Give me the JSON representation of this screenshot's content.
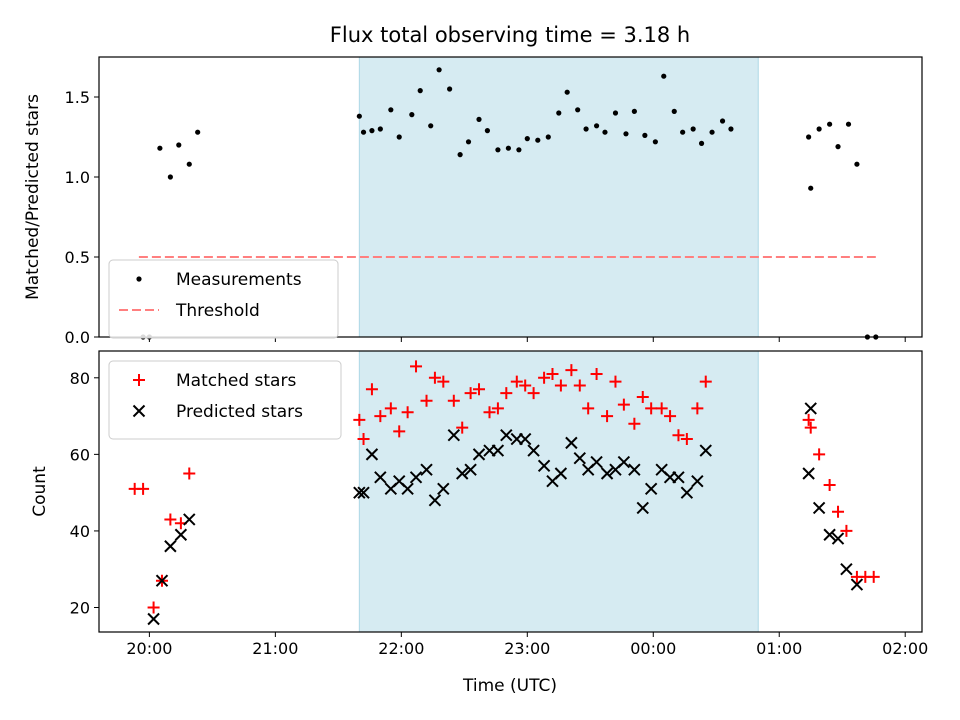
{
  "figure": {
    "title": "Flux total observing time = 3.18 h",
    "xlabel": "Time (UTC)"
  },
  "chart_data": [
    {
      "type": "scatter",
      "title": "Flux total observing time = 3.18 h",
      "ylabel": "Matched/Predicted stars",
      "xlabel": "",
      "xlim": [
        "19:36",
        "02:08"
      ],
      "ylim": [
        0,
        1.75
      ],
      "yticks": [
        "0.0",
        "0.5",
        "1.0",
        "1.5"
      ],
      "legend_position": "lower-left",
      "shaded_span": [
        "21:40",
        "00:50"
      ],
      "shaded_color": "#add8e6",
      "series": [
        {
          "name": "Measurements",
          "marker": "dot",
          "color": "#000000",
          "points": [
            [
              "19:57",
              0.0
            ],
            [
              "20:00",
              0.0
            ],
            [
              "20:05",
              1.18
            ],
            [
              "20:10",
              1.0
            ],
            [
              "20:14",
              1.2
            ],
            [
              "20:19",
              1.08
            ],
            [
              "20:23",
              1.28
            ],
            [
              "21:40",
              1.38
            ],
            [
              "21:42",
              1.28
            ],
            [
              "21:46",
              1.29
            ],
            [
              "21:50",
              1.3
            ],
            [
              "21:55",
              1.42
            ],
            [
              "21:59",
              1.25
            ],
            [
              "22:05",
              1.39
            ],
            [
              "22:09",
              1.54
            ],
            [
              "22:14",
              1.32
            ],
            [
              "22:18",
              1.67
            ],
            [
              "22:23",
              1.55
            ],
            [
              "22:28",
              1.14
            ],
            [
              "22:32",
              1.22
            ],
            [
              "22:37",
              1.36
            ],
            [
              "22:41",
              1.29
            ],
            [
              "22:46",
              1.17
            ],
            [
              "22:51",
              1.18
            ],
            [
              "22:56",
              1.17
            ],
            [
              "23:00",
              1.24
            ],
            [
              "23:05",
              1.23
            ],
            [
              "23:10",
              1.25
            ],
            [
              "23:15",
              1.4
            ],
            [
              "23:19",
              1.53
            ],
            [
              "23:24",
              1.42
            ],
            [
              "23:28",
              1.3
            ],
            [
              "23:33",
              1.32
            ],
            [
              "23:37",
              1.28
            ],
            [
              "23:42",
              1.4
            ],
            [
              "23:47",
              1.27
            ],
            [
              "23:51",
              1.41
            ],
            [
              "23:56",
              1.26
            ],
            [
              "00:01",
              1.22
            ],
            [
              "00:05",
              1.63
            ],
            [
              "00:10",
              1.41
            ],
            [
              "00:14",
              1.28
            ],
            [
              "00:19",
              1.3
            ],
            [
              "00:23",
              1.21
            ],
            [
              "00:28",
              1.28
            ],
            [
              "00:33",
              1.35
            ],
            [
              "00:37",
              1.3
            ],
            [
              "01:14",
              1.25
            ],
            [
              "01:15",
              0.93
            ],
            [
              "01:19",
              1.3
            ],
            [
              "01:24",
              1.33
            ],
            [
              "01:28",
              1.19
            ],
            [
              "01:33",
              1.33
            ],
            [
              "01:37",
              1.08
            ],
            [
              "01:42",
              0.0
            ],
            [
              "01:46",
              0.0
            ]
          ]
        },
        {
          "name": "Threshold",
          "style": "dashed",
          "color": "#ff7f7f",
          "x_range": [
            "19:55",
            "01:46"
          ],
          "y": 0.5
        }
      ]
    },
    {
      "type": "scatter",
      "xlabel": "Time (UTC)",
      "ylabel": "Count",
      "xlim": [
        "19:36",
        "02:08"
      ],
      "ylim": [
        13.6,
        87
      ],
      "yticks": [
        "20",
        "40",
        "60",
        "80"
      ],
      "xticks": [
        "20:00",
        "21:00",
        "22:00",
        "23:00",
        "00:00",
        "01:00",
        "02:00"
      ],
      "legend_position": "upper-left",
      "shaded_span": [
        "21:40",
        "00:50"
      ],
      "shaded_color": "#add8e6",
      "series": [
        {
          "name": "Matched stars",
          "marker": "plus",
          "color": "#ff0000",
          "points": [
            [
              "19:53",
              51
            ],
            [
              "19:57",
              51
            ],
            [
              "20:02",
              20
            ],
            [
              "20:06",
              27
            ],
            [
              "20:10",
              43
            ],
            [
              "20:15",
              42
            ],
            [
              "20:19",
              55
            ],
            [
              "21:40",
              69
            ],
            [
              "21:42",
              64
            ],
            [
              "21:46",
              77
            ],
            [
              "21:50",
              70
            ],
            [
              "21:55",
              72
            ],
            [
              "21:59",
              66
            ],
            [
              "22:03",
              71
            ],
            [
              "22:07",
              83
            ],
            [
              "22:12",
              74
            ],
            [
              "22:16",
              80
            ],
            [
              "22:20",
              79
            ],
            [
              "22:25",
              74
            ],
            [
              "22:29",
              67
            ],
            [
              "22:33",
              76
            ],
            [
              "22:37",
              77
            ],
            [
              "22:42",
              71
            ],
            [
              "22:46",
              72
            ],
            [
              "22:50",
              76
            ],
            [
              "22:55",
              79
            ],
            [
              "22:59",
              78
            ],
            [
              "23:03",
              76
            ],
            [
              "23:08",
              80
            ],
            [
              "23:12",
              81
            ],
            [
              "23:16",
              78
            ],
            [
              "23:21",
              82
            ],
            [
              "23:25",
              78
            ],
            [
              "23:29",
              72
            ],
            [
              "23:33",
              81
            ],
            [
              "23:38",
              70
            ],
            [
              "23:42",
              79
            ],
            [
              "23:46",
              73
            ],
            [
              "23:51",
              68
            ],
            [
              "23:55",
              75
            ],
            [
              "23:59",
              72
            ],
            [
              "00:04",
              72
            ],
            [
              "00:08",
              70
            ],
            [
              "00:12",
              65
            ],
            [
              "00:16",
              64
            ],
            [
              "00:21",
              72
            ],
            [
              "00:25",
              79
            ],
            [
              "01:14",
              69
            ],
            [
              "01:15",
              67
            ],
            [
              "01:19",
              60
            ],
            [
              "01:24",
              52
            ],
            [
              "01:28",
              45
            ],
            [
              "01:32",
              40
            ],
            [
              "01:37",
              28
            ],
            [
              "01:41",
              28
            ],
            [
              "01:45",
              28
            ]
          ]
        },
        {
          "name": "Predicted stars",
          "marker": "x",
          "color": "#000000",
          "points": [
            [
              "20:02",
              17
            ],
            [
              "20:06",
              27
            ],
            [
              "20:10",
              36
            ],
            [
              "20:15",
              39
            ],
            [
              "20:19",
              43
            ],
            [
              "21:40",
              50
            ],
            [
              "21:42",
              50
            ],
            [
              "21:46",
              60
            ],
            [
              "21:50",
              54
            ],
            [
              "21:55",
              51
            ],
            [
              "21:59",
              53
            ],
            [
              "22:03",
              51
            ],
            [
              "22:07",
              54
            ],
            [
              "22:12",
              56
            ],
            [
              "22:16",
              48
            ],
            [
              "22:20",
              51
            ],
            [
              "22:25",
              65
            ],
            [
              "22:29",
              55
            ],
            [
              "22:33",
              56
            ],
            [
              "22:37",
              60
            ],
            [
              "22:42",
              61
            ],
            [
              "22:46",
              61
            ],
            [
              "22:50",
              65
            ],
            [
              "22:55",
              64
            ],
            [
              "22:59",
              64
            ],
            [
              "23:03",
              61
            ],
            [
              "23:08",
              57
            ],
            [
              "23:12",
              53
            ],
            [
              "23:16",
              55
            ],
            [
              "23:21",
              63
            ],
            [
              "23:25",
              59
            ],
            [
              "23:29",
              56
            ],
            [
              "23:33",
              58
            ],
            [
              "23:38",
              55
            ],
            [
              "23:42",
              56
            ],
            [
              "23:46",
              58
            ],
            [
              "23:51",
              56
            ],
            [
              "23:55",
              46
            ],
            [
              "23:59",
              51
            ],
            [
              "00:04",
              56
            ],
            [
              "00:08",
              54
            ],
            [
              "00:12",
              54
            ],
            [
              "00:16",
              50
            ],
            [
              "00:21",
              53
            ],
            [
              "00:25",
              61
            ],
            [
              "01:14",
              55
            ],
            [
              "01:15",
              72
            ],
            [
              "01:19",
              46
            ],
            [
              "01:24",
              39
            ],
            [
              "01:28",
              38
            ],
            [
              "01:32",
              30
            ],
            [
              "01:37",
              26
            ]
          ]
        }
      ]
    }
  ]
}
